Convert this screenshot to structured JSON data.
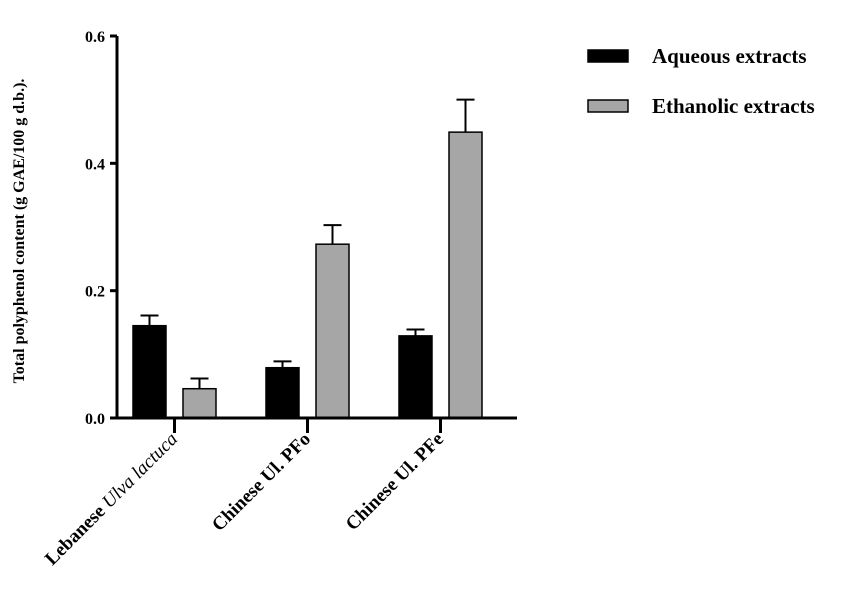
{
  "chart_data": {
    "type": "bar",
    "categories": [
      {
        "label": "Lebanese",
        "label_italic": "Ulva lactuca"
      },
      {
        "label": "Chinese Ul. PFo",
        "label_italic": ""
      },
      {
        "label": "Chinese Ul. PFe",
        "label_italic": ""
      }
    ],
    "series": [
      {
        "name": "Aqueous extracts",
        "color": "#000000",
        "values": [
          0.145,
          0.079,
          0.129
        ],
        "errors": [
          0.016,
          0.01,
          0.01
        ]
      },
      {
        "name": "Ethanolic extracts",
        "color": "#a6a6a6",
        "values": [
          0.046,
          0.273,
          0.449
        ],
        "errors": [
          0.016,
          0.03,
          0.051
        ]
      }
    ],
    "ylabel": "Total polyphenol content  (g GAE/100 g d.b.).",
    "xlabel": "",
    "title": "",
    "ylim": [
      0,
      0.6
    ],
    "yticks": [
      {
        "value": 0.0,
        "label": "0.0"
      },
      {
        "value": 0.2,
        "label": "0.2"
      },
      {
        "value": 0.4,
        "label": "0.4"
      },
      {
        "value": 0.6,
        "label": "0.6"
      }
    ],
    "legend_position": "top-right",
    "grid": false
  }
}
